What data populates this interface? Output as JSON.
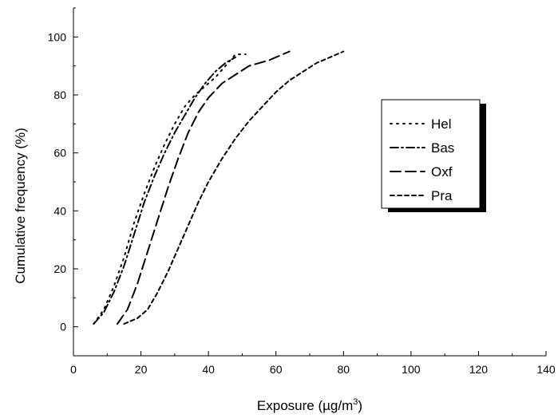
{
  "chart_data": {
    "type": "line",
    "title": "",
    "xlabel": "Exposure (µg/m",
    "xlabel_sup": "3",
    "xlabel_suffix": ")",
    "ylabel": "Cumulative frequency (%)",
    "xlim": [
      0,
      140
    ],
    "ylim": [
      -10,
      110
    ],
    "xticks": [
      0,
      20,
      40,
      60,
      80,
      100,
      120,
      140
    ],
    "yticks": [
      0,
      20,
      40,
      60,
      80,
      100
    ],
    "grid": false,
    "legend_position": "right",
    "series": [
      {
        "name": "Hel",
        "dash": "dotted",
        "points": [
          [
            6,
            1
          ],
          [
            9,
            6
          ],
          [
            12,
            14
          ],
          [
            15,
            24
          ],
          [
            18,
            36
          ],
          [
            21,
            46
          ],
          [
            24,
            55
          ],
          [
            27,
            63
          ],
          [
            30,
            70
          ],
          [
            33,
            76
          ],
          [
            36,
            80
          ],
          [
            39,
            83
          ],
          [
            42,
            86
          ],
          [
            45,
            90
          ],
          [
            48,
            94
          ],
          [
            51,
            94
          ]
        ]
      },
      {
        "name": "Bas",
        "dash": "dashdot",
        "points": [
          [
            6,
            1
          ],
          [
            9,
            5
          ],
          [
            12,
            12
          ],
          [
            15,
            21
          ],
          [
            18,
            32
          ],
          [
            21,
            43
          ],
          [
            24,
            52
          ],
          [
            27,
            60
          ],
          [
            30,
            67
          ],
          [
            33,
            73
          ],
          [
            36,
            79
          ],
          [
            39,
            84
          ],
          [
            42,
            88
          ],
          [
            45,
            91
          ],
          [
            48,
            93
          ]
        ]
      },
      {
        "name": "Oxf",
        "dash": "dashed",
        "points": [
          [
            13,
            1
          ],
          [
            16,
            6
          ],
          [
            19,
            15
          ],
          [
            22,
            26
          ],
          [
            25,
            37
          ],
          [
            28,
            48
          ],
          [
            31,
            58
          ],
          [
            34,
            67
          ],
          [
            37,
            74
          ],
          [
            40,
            79
          ],
          [
            44,
            84
          ],
          [
            48,
            87
          ],
          [
            52,
            90
          ],
          [
            58,
            92
          ],
          [
            64,
            95
          ]
        ]
      },
      {
        "name": "Pra",
        "dash": "shortdash",
        "points": [
          [
            15,
            1
          ],
          [
            19,
            3
          ],
          [
            22,
            6
          ],
          [
            25,
            12
          ],
          [
            28,
            19
          ],
          [
            31,
            27
          ],
          [
            34,
            35
          ],
          [
            37,
            43
          ],
          [
            40,
            50
          ],
          [
            44,
            58
          ],
          [
            48,
            65
          ],
          [
            52,
            71
          ],
          [
            56,
            76
          ],
          [
            60,
            81
          ],
          [
            64,
            85
          ],
          [
            68,
            88
          ],
          [
            72,
            91
          ],
          [
            76,
            93
          ],
          [
            80,
            95
          ]
        ]
      }
    ]
  }
}
